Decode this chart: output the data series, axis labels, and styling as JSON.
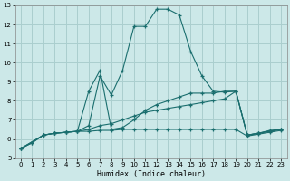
{
  "xlabel": "Humidex (Indice chaleur)",
  "bg_color": "#cce8e8",
  "grid_color": "#aacece",
  "line_color": "#1a6e6e",
  "xlim": [
    -0.5,
    23.5
  ],
  "ylim": [
    5,
    13
  ],
  "xticks": [
    0,
    1,
    2,
    3,
    4,
    5,
    6,
    7,
    8,
    9,
    10,
    11,
    12,
    13,
    14,
    15,
    16,
    17,
    18,
    19,
    20,
    21,
    22,
    23
  ],
  "yticks": [
    5,
    6,
    7,
    8,
    9,
    10,
    11,
    12,
    13
  ],
  "series": [
    {
      "x": [
        0,
        1,
        2,
        3,
        4,
        5,
        6,
        7,
        8,
        9,
        10,
        11,
        12,
        13,
        14,
        15,
        16,
        17,
        18,
        19,
        20,
        21,
        22,
        23
      ],
      "y": [
        5.5,
        5.8,
        6.2,
        6.3,
        6.35,
        6.4,
        6.4,
        6.45,
        6.45,
        6.5,
        6.5,
        6.5,
        6.5,
        6.5,
        6.5,
        6.5,
        6.5,
        6.5,
        6.5,
        6.5,
        6.15,
        6.25,
        6.35,
        6.45
      ]
    },
    {
      "x": [
        0,
        1,
        2,
        3,
        4,
        5,
        6,
        7,
        8,
        9,
        10,
        11,
        12,
        13,
        14,
        15,
        16,
        17,
        18,
        19,
        20,
        21,
        22,
        23
      ],
      "y": [
        5.5,
        5.8,
        6.2,
        6.3,
        6.35,
        6.4,
        6.5,
        6.7,
        6.8,
        7.0,
        7.2,
        7.4,
        7.5,
        7.6,
        7.7,
        7.8,
        7.9,
        8.0,
        8.1,
        8.5,
        6.2,
        6.3,
        6.4,
        6.5
      ]
    },
    {
      "x": [
        0,
        2,
        3,
        4,
        5,
        6,
        7,
        8,
        9,
        10,
        11,
        12,
        13,
        14,
        15,
        16,
        17,
        18,
        19,
        20,
        21,
        22,
        23
      ],
      "y": [
        5.5,
        6.2,
        6.3,
        6.35,
        6.4,
        8.5,
        9.6,
        6.5,
        6.6,
        7.0,
        7.5,
        7.8,
        8.0,
        8.2,
        8.4,
        8.4,
        8.4,
        8.5,
        8.5,
        6.2,
        6.3,
        6.45,
        6.5
      ]
    },
    {
      "x": [
        0,
        2,
        3,
        4,
        5,
        6,
        7,
        8,
        9,
        10,
        11,
        12,
        13,
        14,
        15,
        16,
        17,
        18,
        19,
        20,
        21,
        22,
        23
      ],
      "y": [
        5.5,
        6.2,
        6.3,
        6.35,
        6.4,
        6.7,
        9.3,
        8.3,
        9.6,
        11.9,
        11.9,
        12.8,
        12.8,
        12.5,
        10.6,
        9.3,
        8.5,
        8.45,
        8.5,
        6.2,
        6.3,
        6.4,
        6.5
      ]
    }
  ]
}
